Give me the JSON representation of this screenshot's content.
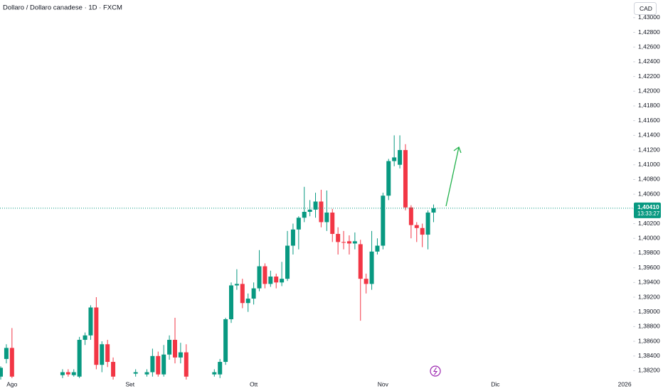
{
  "chart_data": {
    "type": "candlestick",
    "title": "Dollaro / Dollaro canadese · 1D · FXCM",
    "currency": "CAD",
    "up_color": "#089981",
    "down_color": "#f23645",
    "x": [
      0,
      1,
      2,
      11,
      12,
      13,
      14,
      15,
      16,
      17,
      18,
      19,
      20,
      24,
      26,
      27,
      28,
      29,
      30,
      31,
      32,
      33,
      38,
      39,
      40,
      41,
      42,
      43,
      44,
      45,
      46,
      47,
      48,
      49,
      50,
      51,
      52,
      53,
      54,
      55,
      56,
      57,
      58,
      59,
      60,
      61,
      62,
      63,
      64,
      65,
      66,
      67,
      68,
      69,
      70,
      71,
      72,
      73,
      74,
      75,
      76,
      77
    ],
    "open": [
      1.3812,
      1.3836,
      1.3851,
      1.3814,
      1.3818,
      1.3814,
      1.3812,
      1.3862,
      1.3868,
      1.3906,
      1.3828,
      1.3856,
      1.3832,
      1.3816,
      1.3815,
      1.3818,
      1.384,
      1.3815,
      1.3842,
      1.3862,
      1.3838,
      1.3845,
      1.3815,
      1.3815,
      1.3832,
      1.389,
      1.3936,
      1.3938,
      1.3912,
      1.3918,
      1.3932,
      1.3962,
      1.3938,
      1.3948,
      1.394,
      1.3945,
      1.399,
      1.4012,
      1.4028,
      1.4036,
      1.4039,
      1.405,
      1.4022,
      1.4035,
      1.4006,
      1.3995,
      1.3996,
      1.3993,
      1.3992,
      1.3945,
      1.3938,
      1.3982,
      1.399,
      1.4058,
      1.4105,
      1.41,
      1.412,
      1.4042,
      1.4018,
      1.4014,
      1.4005,
      1.4035
    ],
    "high": [
      1.3826,
      1.3856,
      1.3878,
      1.3822,
      1.3822,
      1.3822,
      1.3866,
      1.3872,
      1.3909,
      1.392,
      1.386,
      1.3862,
      1.3838,
      1.3822,
      1.3822,
      1.385,
      1.3846,
      1.3855,
      1.3868,
      1.3892,
      1.3858,
      1.3856,
      1.3822,
      1.3836,
      1.3892,
      1.394,
      1.3958,
      1.3945,
      1.3925,
      1.394,
      1.3984,
      1.3966,
      1.3956,
      1.3952,
      1.3968,
      1.401,
      1.402,
      1.403,
      1.407,
      1.4052,
      1.4062,
      1.4066,
      1.4065,
      1.404,
      1.4015,
      1.401,
      1.4004,
      1.4008,
      1.3998,
      1.3952,
      1.401,
      1.4,
      1.4062,
      1.4108,
      1.414,
      1.414,
      1.4128,
      1.4045,
      1.4022,
      1.402,
      1.4038,
      1.4046
    ],
    "low": [
      1.3808,
      1.383,
      1.381,
      1.381,
      1.3812,
      1.3812,
      1.381,
      1.3855,
      1.3862,
      1.3822,
      1.3818,
      1.3825,
      1.3808,
      1.3812,
      1.3812,
      1.3812,
      1.3812,
      1.3812,
      1.3835,
      1.383,
      1.383,
      1.3808,
      1.3812,
      1.381,
      1.3828,
      1.3885,
      1.393,
      1.3905,
      1.39,
      1.391,
      1.3928,
      1.3932,
      1.3934,
      1.3932,
      1.3935,
      1.3942,
      1.3978,
      1.3985,
      1.4022,
      1.403,
      1.4028,
      1.4015,
      1.401,
      1.3995,
      1.3978,
      1.3985,
      1.3978,
      1.3985,
      1.3888,
      1.3925,
      1.393,
      1.3978,
      1.3985,
      1.4052,
      1.4098,
      1.4095,
      1.4038,
      1.4,
      1.3995,
      1.3988,
      1.3985,
      1.4022
    ],
    "close": [
      1.3824,
      1.3851,
      1.3812,
      1.3818,
      1.3815,
      1.3818,
      1.3862,
      1.3868,
      1.3906,
      1.3828,
      1.3856,
      1.3832,
      1.3812,
      1.3818,
      1.3818,
      1.384,
      1.3815,
      1.3842,
      1.3862,
      1.3838,
      1.3845,
      1.3812,
      1.3818,
      1.3832,
      1.389,
      1.3936,
      1.3938,
      1.3912,
      1.3918,
      1.3932,
      1.3962,
      1.3938,
      1.3948,
      1.394,
      1.3945,
      1.399,
      1.4012,
      1.4028,
      1.4036,
      1.4039,
      1.405,
      1.4022,
      1.4035,
      1.4006,
      1.3995,
      1.3994,
      1.3993,
      1.3996,
      1.3945,
      1.3938,
      1.3982,
      1.399,
      1.4058,
      1.4105,
      1.411,
      1.412,
      1.4042,
      1.4018,
      1.4014,
      1.4005,
      1.4035,
      1.4041
    ],
    "xlim": [
      -0.13,
      112.5
    ],
    "xticks": [
      {
        "value": 2,
        "label": "Ago"
      },
      {
        "value": 23,
        "label": "Set"
      },
      {
        "value": 45,
        "label": "Ott"
      },
      {
        "value": 68,
        "label": "Nov"
      },
      {
        "value": 88,
        "label": "Dic"
      },
      {
        "value": 111,
        "label": "2026"
      }
    ],
    "ylim": [
      1.3805,
      1.4324
    ],
    "yticks": [
      {
        "value": 1.382,
        "label": "1,38200"
      },
      {
        "value": 1.384,
        "label": "1,38400"
      },
      {
        "value": 1.386,
        "label": "1,38600"
      },
      {
        "value": 1.388,
        "label": "1,38800"
      },
      {
        "value": 1.39,
        "label": "1,39000"
      },
      {
        "value": 1.392,
        "label": "1,39200"
      },
      {
        "value": 1.394,
        "label": "1,39400"
      },
      {
        "value": 1.396,
        "label": "1,39600"
      },
      {
        "value": 1.398,
        "label": "1,39800"
      },
      {
        "value": 1.4,
        "label": "1,40000"
      },
      {
        "value": 1.402,
        "label": "1,40200"
      },
      {
        "value": 1.404,
        "label": "1,40400"
      },
      {
        "value": 1.406,
        "label": "1,40600"
      },
      {
        "value": 1.408,
        "label": "1,40800"
      },
      {
        "value": 1.41,
        "label": "1,41000"
      },
      {
        "value": 1.412,
        "label": "1,41200"
      },
      {
        "value": 1.414,
        "label": "1,41400"
      },
      {
        "value": 1.416,
        "label": "1,41600"
      },
      {
        "value": 1.418,
        "label": "1,41800"
      },
      {
        "value": 1.42,
        "label": "1,42000"
      },
      {
        "value": 1.422,
        "label": "1,42200"
      },
      {
        "value": 1.424,
        "label": "1,42400"
      },
      {
        "value": 1.426,
        "label": "1,42600"
      },
      {
        "value": 1.428,
        "label": "1,42800"
      },
      {
        "value": 1.43,
        "label": "1,43000"
      }
    ],
    "last_price": {
      "value": 1.4041,
      "label": "1,40410"
    },
    "countdown": "13:33:27"
  }
}
